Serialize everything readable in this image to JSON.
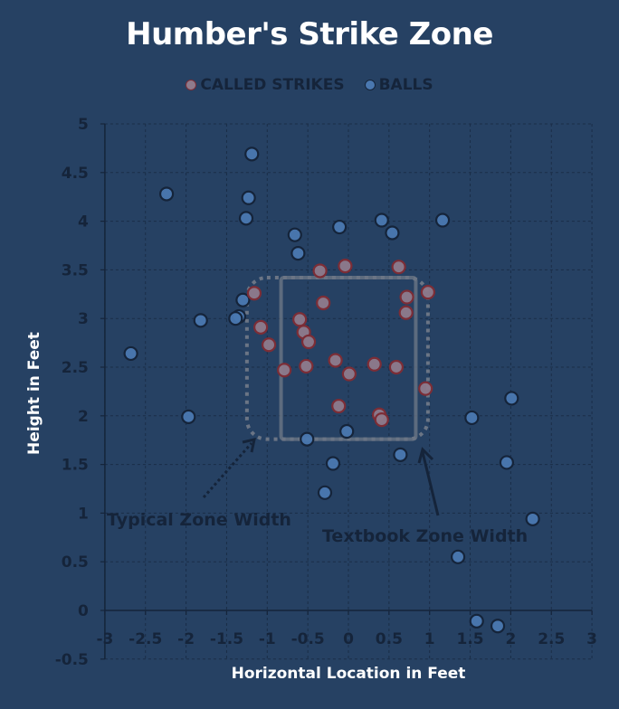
{
  "chart_data": {
    "type": "scatter",
    "title": "Humber's Strike Zone",
    "xlabel": "Horizontal Location in Feet",
    "ylabel": "Height in Feet",
    "xlim": [
      -3,
      3
    ],
    "ylim": [
      -0.5,
      5
    ],
    "x_ticks": [
      "-3",
      "-2.5",
      "-2",
      "-1.5",
      "-1",
      "-0.5",
      "0",
      "0.5",
      "1",
      "1.5",
      "2",
      "2.5",
      "3"
    ],
    "y_ticks": [
      "5",
      "4.5",
      "4",
      "3.5",
      "3",
      "2.5",
      "2",
      "1.5",
      "1",
      "0.5",
      "0",
      "-0.5"
    ],
    "grid": true,
    "legend_position": "top",
    "series": [
      {
        "name": "CALLED STRIKES",
        "color": "#8f7b8c",
        "edge_color": "#7c2d36",
        "points": [
          [
            -0.35,
            3.49
          ],
          [
            -0.04,
            3.54
          ],
          [
            0.62,
            3.53
          ],
          [
            -1.16,
            3.26
          ],
          [
            -0.31,
            3.16
          ],
          [
            0.72,
            3.22
          ],
          [
            0.98,
            3.27
          ],
          [
            0.71,
            3.06
          ],
          [
            -1.08,
            2.91
          ],
          [
            -0.6,
            2.99
          ],
          [
            -0.55,
            2.86
          ],
          [
            -0.49,
            2.76
          ],
          [
            -0.98,
            2.73
          ],
          [
            -0.79,
            2.47
          ],
          [
            -0.52,
            2.51
          ],
          [
            -0.16,
            2.57
          ],
          [
            0.01,
            2.43
          ],
          [
            0.32,
            2.53
          ],
          [
            0.59,
            2.5
          ],
          [
            0.95,
            2.28
          ],
          [
            -0.12,
            2.1
          ],
          [
            0.38,
            2.01
          ],
          [
            0.41,
            1.96
          ]
        ]
      },
      {
        "name": "BALLS",
        "color": "#4a78b0",
        "edge_color": "#15243a",
        "points": [
          [
            -1.19,
            4.69
          ],
          [
            -2.24,
            4.28
          ],
          [
            -1.23,
            4.24
          ],
          [
            -1.26,
            4.03
          ],
          [
            -0.66,
            3.86
          ],
          [
            -0.11,
            3.94
          ],
          [
            0.41,
            4.01
          ],
          [
            0.54,
            3.88
          ],
          [
            1.16,
            4.01
          ],
          [
            -0.62,
            3.67
          ],
          [
            -1.3,
            3.19
          ],
          [
            -1.35,
            3.02
          ],
          [
            -1.39,
            3.0
          ],
          [
            -1.82,
            2.98
          ],
          [
            -2.68,
            2.64
          ],
          [
            -1.97,
            1.99
          ],
          [
            -0.51,
            1.76
          ],
          [
            -0.02,
            1.84
          ],
          [
            -0.19,
            1.51
          ],
          [
            -0.29,
            1.21
          ],
          [
            0.64,
            1.6
          ],
          [
            1.52,
            1.98
          ],
          [
            2.01,
            2.18
          ],
          [
            1.95,
            1.52
          ],
          [
            2.27,
            0.94
          ],
          [
            1.35,
            0.55
          ],
          [
            1.58,
            -0.11
          ],
          [
            1.84,
            -0.16
          ]
        ]
      }
    ],
    "annotations": [
      {
        "text": "Typical Zone Width",
        "shape": "dotted rounded rectangle",
        "x_range": [
          -1.25,
          0.98
        ],
        "y_range": [
          1.76,
          3.42
        ]
      },
      {
        "text": "Textbook Zone Width",
        "shape": "solid rectangle",
        "x_range": [
          -0.83,
          0.83
        ],
        "y_range": [
          1.76,
          3.42
        ]
      }
    ]
  },
  "legend": {
    "strikes_label": "CALLED STRIKES",
    "balls_label": "BALLS"
  }
}
